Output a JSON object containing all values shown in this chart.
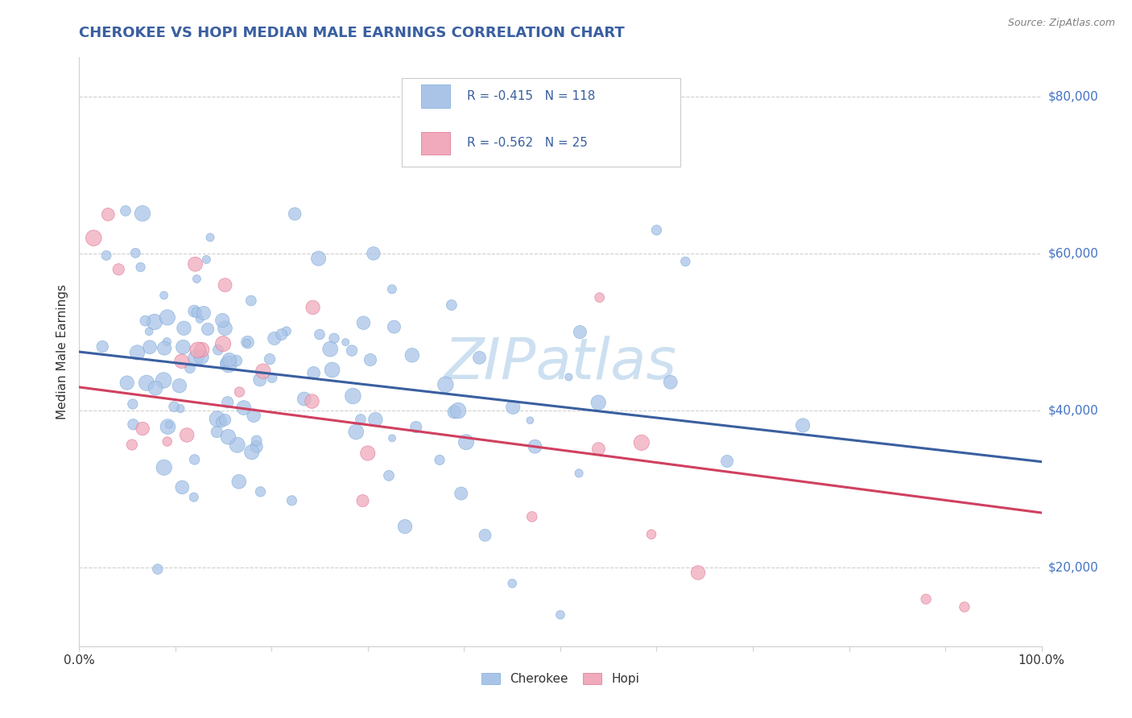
{
  "title": "CHEROKEE VS HOPI MEDIAN MALE EARNINGS CORRELATION CHART",
  "source": "Source: ZipAtlas.com",
  "ylabel": "Median Male Earnings",
  "xlim": [
    0.0,
    1.0
  ],
  "ylim": [
    10000,
    85000
  ],
  "ytick_values": [
    20000,
    40000,
    60000,
    80000
  ],
  "ytick_labels": [
    "$20,000",
    "$40,000",
    "$60,000",
    "$80,000"
  ],
  "cherokee_color": "#aac4e8",
  "cherokee_edge_color": "#7aaad8",
  "cherokee_line_color": "#3a5fa0",
  "hopi_color": "#f0aabb",
  "hopi_edge_color": "#e07090",
  "hopi_line_color": "#d04060",
  "title_color": "#3a5fa0",
  "right_label_color": "#4472c4",
  "source_color": "#808080",
  "R_cherokee": -0.415,
  "N_cherokee": 118,
  "R_hopi": -0.562,
  "N_hopi": 25,
  "legend_label_cherokee": "Cherokee",
  "legend_label_hopi": "Hopi",
  "watermark_text": "ZIPatlas",
  "watermark_color": "#c8ddf0",
  "grid_color": "#d0d0d0",
  "cherokee_line_y0": 47500,
  "cherokee_line_y1": 33500,
  "hopi_line_y0": 43000,
  "hopi_line_y1": 27000
}
